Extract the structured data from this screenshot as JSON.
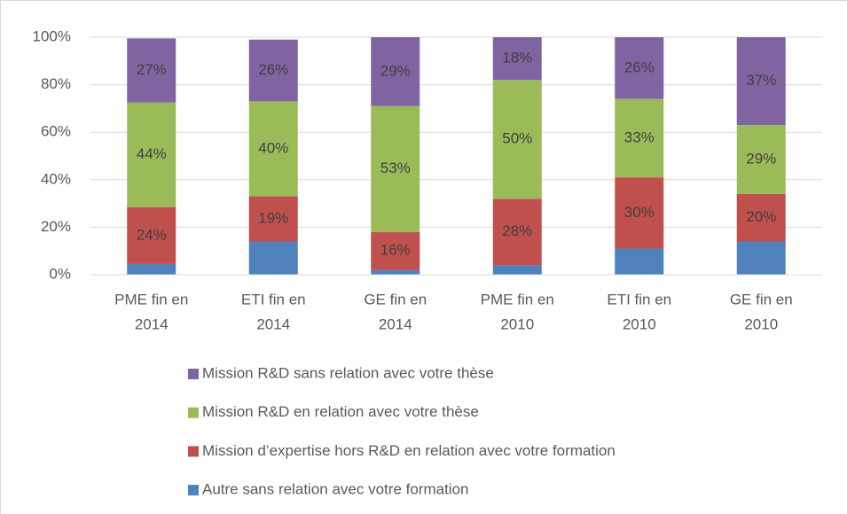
{
  "chart_data": {
    "type": "stacked_bar",
    "categories": [
      [
        "PME fin en",
        "2014"
      ],
      [
        "ETI fin en",
        "2014"
      ],
      [
        "GE fin en",
        "2014"
      ],
      [
        "PME fin en",
        "2010"
      ],
      [
        "ETI fin en",
        "2010"
      ],
      [
        "GE fin en",
        "2010"
      ]
    ],
    "series": [
      {
        "name": "Autre sans relation avec votre formation",
        "color": "#4f81bd",
        "values": [
          4.5,
          14,
          2,
          4,
          11,
          14
        ]
      },
      {
        "name": "Mission d’expertise hors R&D en relation avec votre formation",
        "color": "#c0504d",
        "values": [
          24,
          19,
          16,
          28,
          30,
          20
        ],
        "value_labels": [
          "24%",
          "19%",
          "16%",
          "28%",
          "30%",
          "20%"
        ]
      },
      {
        "name": "Mission R&D en relation avec votre thèse",
        "color": "#9bbb59",
        "values": [
          44,
          40,
          53,
          50,
          33,
          29
        ],
        "value_labels": [
          "44%",
          "40%",
          "53%",
          "50%",
          "33%",
          "29%"
        ]
      },
      {
        "name": "Mission R&D sans relation avec votre thèse",
        "color": "#8064a2",
        "values": [
          27,
          26,
          29,
          18,
          26,
          37
        ],
        "value_labels": [
          "27%",
          "26%",
          "29%",
          "18%",
          "26%",
          "37%"
        ]
      }
    ],
    "ylim": [
      0,
      100
    ],
    "yticks": [
      {
        "value": 0,
        "label": "0%"
      },
      {
        "value": 20,
        "label": "20%"
      },
      {
        "value": 40,
        "label": "40%"
      },
      {
        "value": 60,
        "label": "60%"
      },
      {
        "value": 80,
        "label": "80%"
      },
      {
        "value": 100,
        "label": "100%"
      }
    ],
    "grid": true,
    "legend": "bottom"
  }
}
